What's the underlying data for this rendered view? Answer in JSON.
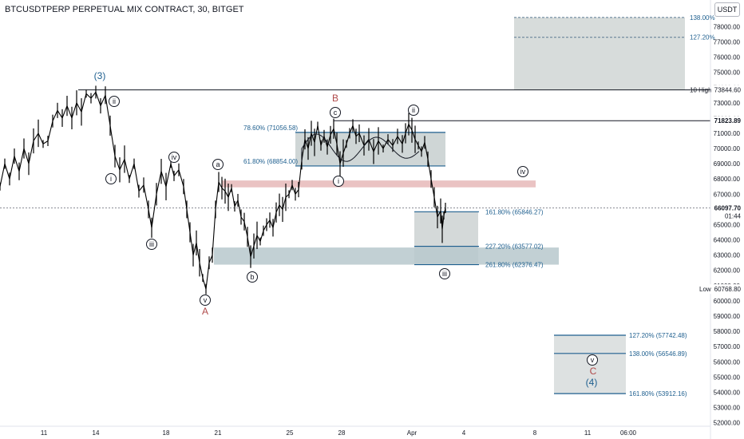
{
  "header": {
    "title": "BTCUSDTPERP PERPETUAL MIX CONTRACT, 30, BITGET",
    "unit": "USDT"
  },
  "chart_data": {
    "type": "candlestick",
    "ylim": [
      52000,
      79000
    ],
    "price_ticks": [
      52000,
      53000,
      54000,
      55000,
      56000,
      57000,
      58000,
      59000,
      60000,
      61000,
      62000,
      63000,
      64000,
      65000,
      66000,
      67000,
      68000,
      69000,
      70000,
      71000,
      72000,
      73000,
      74000,
      75000,
      76000,
      77000,
      78000
    ],
    "tick_labels": [
      "52000.00",
      "53000.00",
      "54000.00",
      "55000.00",
      "56000.00",
      "57000.00",
      "58000.00",
      "59000.00",
      "60000.00",
      "61000.00",
      "62000.00",
      "63000.00",
      "64000.00",
      "65000.00",
      "66000.00",
      "67000.00",
      "68000.00",
      "69000.00",
      "70000.00",
      "71000.00",
      "72000.00",
      "73000.00",
      "74000.00",
      "75000.00",
      "76000.00",
      "77000.00",
      "78000.00"
    ],
    "x_ticks": [
      "11",
      "14",
      "18",
      "21",
      "25",
      "28",
      "Apr",
      "4",
      "8",
      "11",
      "06:00"
    ],
    "price_path": [
      [
        0,
        67500
      ],
      [
        6,
        69000
      ],
      [
        12,
        68000
      ],
      [
        18,
        69500
      ],
      [
        24,
        68500
      ],
      [
        30,
        70000
      ],
      [
        36,
        69000
      ],
      [
        42,
        70500
      ],
      [
        48,
        71000
      ],
      [
        54,
        70300
      ],
      [
        60,
        70500
      ],
      [
        66,
        71800
      ],
      [
        72,
        72500
      ],
      [
        78,
        72000
      ],
      [
        84,
        72800
      ],
      [
        90,
        72000
      ],
      [
        96,
        73000
      ],
      [
        102,
        72400
      ],
      [
        108,
        73600
      ],
      [
        114,
        73300
      ],
      [
        120,
        73700
      ],
      [
        126,
        72800
      ],
      [
        132,
        73500
      ],
      [
        138,
        71500
      ],
      [
        144,
        69500
      ],
      [
        150,
        68600
      ],
      [
        156,
        69300
      ],
      [
        162,
        68000
      ],
      [
        168,
        69000
      ],
      [
        174,
        67200
      ],
      [
        180,
        67600
      ],
      [
        186,
        66000
      ],
      [
        190,
        64800
      ],
      [
        196,
        67000
      ],
      [
        202,
        68500
      ],
      [
        208,
        67500
      ],
      [
        214,
        69000
      ],
      [
        218,
        68200
      ],
      [
        224,
        68600
      ],
      [
        230,
        67500
      ],
      [
        234,
        66000
      ],
      [
        238,
        64500
      ],
      [
        242,
        63000
      ],
      [
        246,
        63800
      ],
      [
        250,
        62500
      ],
      [
        254,
        61500
      ],
      [
        258,
        60769
      ],
      [
        262,
        62500
      ],
      [
        266,
        63000
      ],
      [
        270,
        66000
      ],
      [
        274,
        67800
      ],
      [
        278,
        67400
      ],
      [
        282,
        67200
      ],
      [
        286,
        66800
      ],
      [
        290,
        67400
      ],
      [
        294,
        66200
      ],
      [
        298,
        66600
      ],
      [
        302,
        65500
      ],
      [
        306,
        65200
      ],
      [
        310,
        64200
      ],
      [
        314,
        62900
      ],
      [
        318,
        63600
      ],
      [
        322,
        64300
      ],
      [
        326,
        63900
      ],
      [
        330,
        64600
      ],
      [
        334,
        65000
      ],
      [
        338,
        65300
      ],
      [
        342,
        64800
      ],
      [
        346,
        65800
      ],
      [
        350,
        66300
      ],
      [
        354,
        66000
      ],
      [
        358,
        66800
      ],
      [
        362,
        67000
      ],
      [
        366,
        67600
      ],
      [
        370,
        67000
      ],
      [
        374,
        67300
      ],
      [
        378,
        69200
      ],
      [
        382,
        70600
      ],
      [
        386,
        70000
      ],
      [
        390,
        71000
      ],
      [
        394,
        70400
      ],
      [
        398,
        71500
      ],
      [
        402,
        70200
      ],
      [
        406,
        70800
      ],
      [
        410,
        70100
      ],
      [
        414,
        70900
      ],
      [
        418,
        71300
      ],
      [
        422,
        70300
      ],
      [
        426,
        69000
      ],
      [
        430,
        69700
      ],
      [
        434,
        70300
      ],
      [
        438,
        71000
      ],
      [
        442,
        71500
      ],
      [
        446,
        70800
      ],
      [
        450,
        71000
      ],
      [
        456,
        70200
      ],
      [
        462,
        70600
      ],
      [
        468,
        69800
      ],
      [
        474,
        70500
      ],
      [
        480,
        70000
      ],
      [
        486,
        70600
      ],
      [
        492,
        70200
      ],
      [
        498,
        70800
      ],
      [
        504,
        70300
      ],
      [
        508,
        71000
      ],
      [
        512,
        71600
      ],
      [
        516,
        71200
      ],
      [
        520,
        70600
      ],
      [
        524,
        70200
      ],
      [
        528,
        69800
      ],
      [
        532,
        70400
      ],
      [
        536,
        69300
      ],
      [
        540,
        68000
      ],
      [
        544,
        66800
      ],
      [
        548,
        65500
      ],
      [
        552,
        65900
      ],
      [
        554,
        64700
      ],
      [
        556,
        65600
      ],
      [
        558,
        66100
      ]
    ],
    "last_price": "66097.70",
    "countdown": "01:44",
    "last_price_value": 66097.7,
    "high_price": "71823.89",
    "high_value": 71823.89,
    "low_price": "60768.80",
    "low_value": 60768.8,
    "low_label": "Low",
    "high_label": "10 High",
    "high2_price": "73844.60",
    "high2_value": 73844.6,
    "fib_levels": [
      {
        "label": "78.60% (71056.58)",
        "value": 71056.58
      },
      {
        "label": "61.80% (68854.00)",
        "value": 68854.0
      },
      {
        "label": "161.80% (65846.27)",
        "value": 65846.27
      },
      {
        "label": "227.20% (63577.02)",
        "value": 63577.02
      },
      {
        "label": "261.80% (62376.47)",
        "value": 62376.47
      },
      {
        "label": "127.20% (57742.48)",
        "value": 57742.48
      },
      {
        "label": "138.00% (56546.89)",
        "value": 56546.89
      },
      {
        "label": "161.80% (53912.16)",
        "value": 53912.16
      },
      {
        "label": "138.00%",
        "value": 78600
      },
      {
        "label": "127.20%",
        "value": 77300
      }
    ],
    "wave_labels": {
      "w3": "(3)",
      "w4": "(4)",
      "A": "A",
      "B": "B",
      "C": "C",
      "i": "i",
      "ii": "ii",
      "iii": "iii",
      "iv": "iv",
      "v": "v",
      "a": "a",
      "b": "b",
      "c": "c"
    }
  }
}
